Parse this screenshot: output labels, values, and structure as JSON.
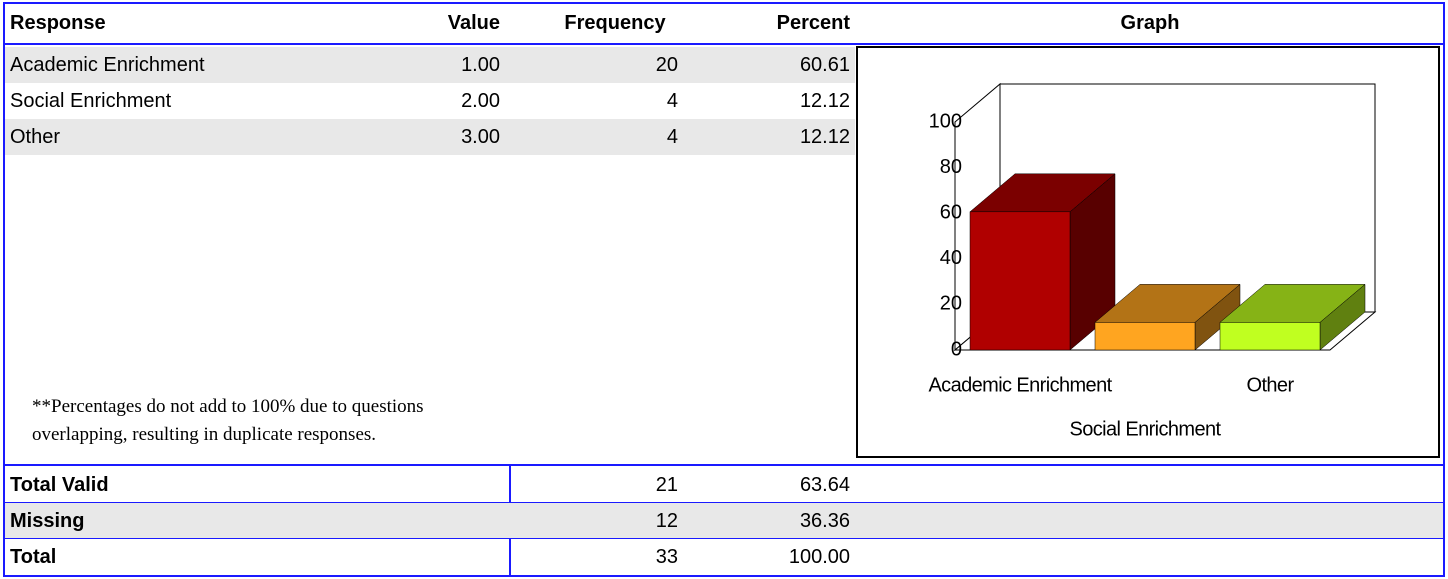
{
  "header": [
    "Response",
    "Value",
    "Frequency",
    "Percent",
    "Graph"
  ],
  "rows": [
    [
      "Academic Enrichment",
      "1.00",
      "20",
      "60.61"
    ],
    [
      "Social Enrichment",
      "2.00",
      "4",
      "12.12"
    ],
    [
      "Other",
      "3.00",
      "4",
      "12.12"
    ]
  ],
  "note": [
    "**Percentages do not add to 100% due to questions",
    "overlapping, resulting in duplicate responses."
  ],
  "totals": [
    [
      "Total Valid",
      "21",
      "63.64"
    ],
    [
      "Missing",
      "12",
      "36.36"
    ],
    [
      "Total",
      "33",
      "100.00"
    ]
  ],
  "graph": {
    "type": "bar3d",
    "categories": [
      "Academic Enrichment",
      "Social Enrichment",
      "Other"
    ],
    "values": [
      60.61,
      12.12,
      12.12
    ],
    "colors": [
      "#b00000",
      "#ffa520",
      "#c0ff20"
    ],
    "ylim": [
      0,
      100
    ],
    "yticks": [
      0,
      20,
      40,
      60,
      80,
      100
    ]
  }
}
